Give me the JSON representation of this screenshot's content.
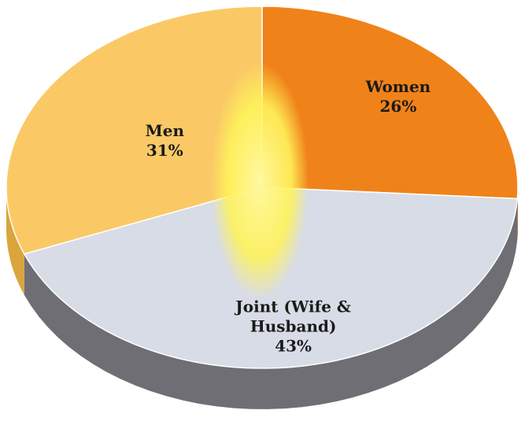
{
  "chart_data": {
    "type": "pie",
    "categories": [
      "Women",
      "Joint (Wife & Husband)",
      "Men"
    ],
    "values": [
      26,
      43,
      31
    ],
    "value_labels": [
      "26%",
      "43%",
      "31%"
    ],
    "colors": [
      "#f0821a",
      "#d8dce6",
      "#fac966"
    ],
    "side_colors": [
      "#b85f0c",
      "#6e6e74",
      "#d9a53c"
    ]
  }
}
